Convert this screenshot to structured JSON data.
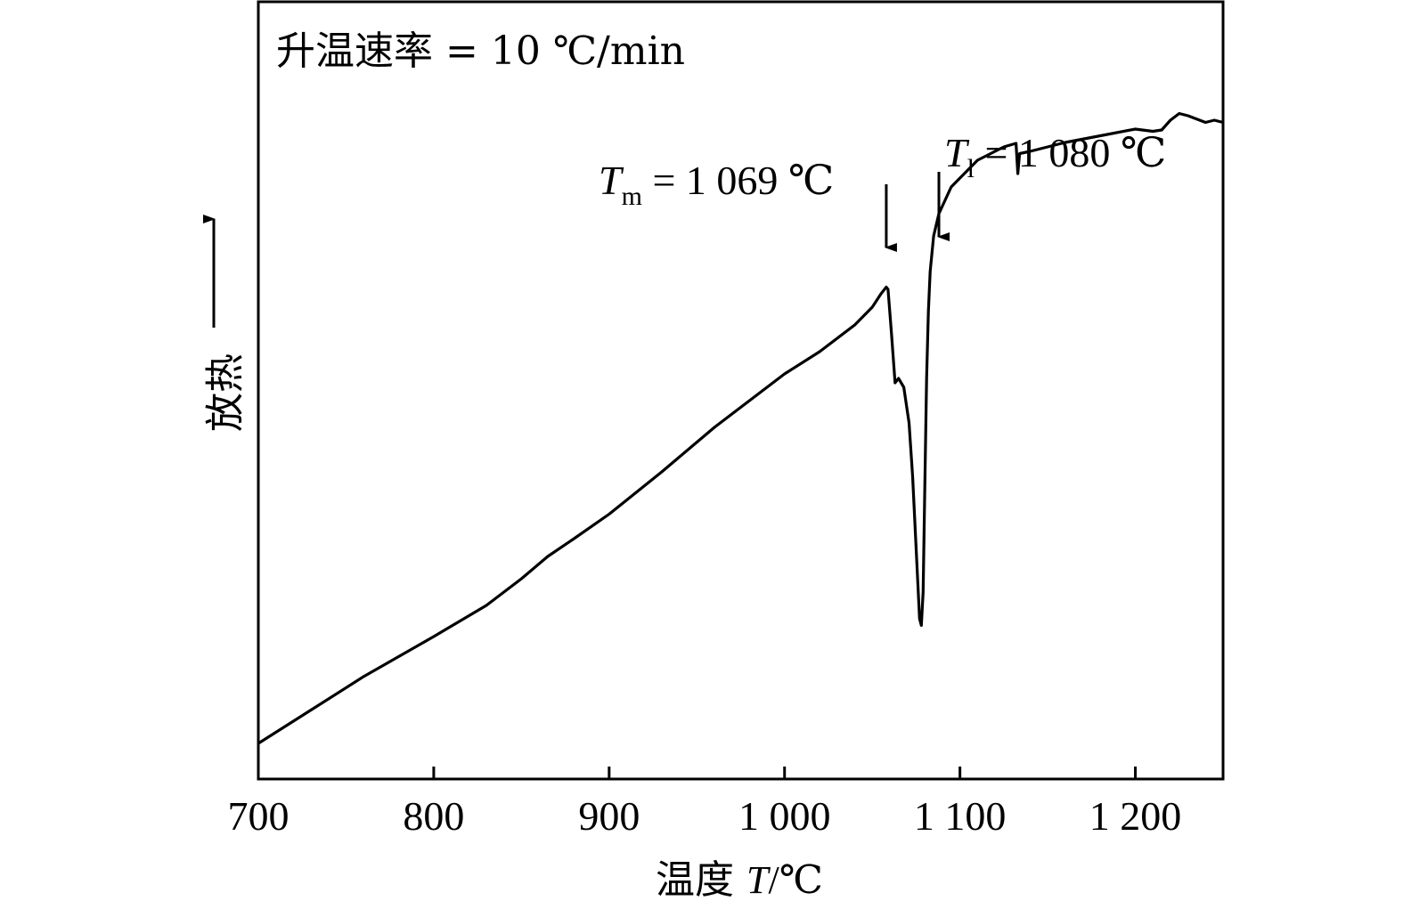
{
  "chart_data": {
    "type": "line",
    "title": "",
    "heating_rate_note": "升温速率 = 10 ℃/min",
    "xlabel_prefix": "温度 ",
    "xlabel_var": "T",
    "xlabel_unit": "/℃",
    "ylabel": "放热",
    "xlim": [
      700,
      1250
    ],
    "xticks": [
      700,
      800,
      900,
      1000,
      1100,
      1200
    ],
    "xtick_labels": [
      "700",
      "800",
      "900",
      "1 000",
      "1 100",
      "1 200"
    ],
    "grid": false,
    "annotations": [
      {
        "var": "T",
        "sub": "m",
        "text": " = 1 069 ℃",
        "x": 1058
      },
      {
        "var": "T",
        "sub": "l",
        "text": " = 1 080 ℃",
        "x": 1088
      }
    ],
    "series": [
      {
        "x": [
          700,
          730,
          760,
          800,
          830,
          850,
          865,
          880,
          900,
          930,
          960,
          1000,
          1020,
          1040,
          1050,
          1055,
          1058,
          1059,
          1061,
          1063,
          1065,
          1068,
          1071,
          1073,
          1075,
          1077,
          1078,
          1079,
          1080,
          1081,
          1082,
          1083,
          1085,
          1088,
          1095,
          1110,
          1125,
          1132,
          1133,
          1134,
          1140,
          1160,
          1180,
          1200,
          1210,
          1215,
          1220,
          1225,
          1230,
          1240,
          1245,
          1250
        ],
        "y": [
          0.13,
          0.205,
          0.28,
          0.37,
          0.44,
          0.5,
          0.55,
          0.59,
          0.645,
          0.74,
          0.84,
          0.96,
          1.01,
          1.07,
          1.11,
          1.14,
          1.155,
          1.15,
          1.05,
          0.94,
          0.95,
          0.93,
          0.85,
          0.73,
          0.57,
          0.41,
          0.395,
          0.47,
          0.72,
          0.95,
          1.1,
          1.19,
          1.27,
          1.32,
          1.38,
          1.44,
          1.47,
          1.478,
          1.41,
          1.455,
          1.46,
          1.48,
          1.495,
          1.51,
          1.505,
          1.508,
          1.53,
          1.545,
          1.54,
          1.525,
          1.53,
          1.525
        ]
      }
    ]
  }
}
